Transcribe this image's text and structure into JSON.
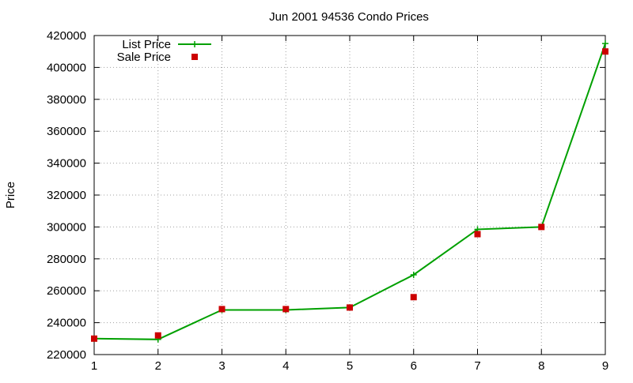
{
  "chart_data": {
    "type": "line",
    "title": "Jun 2001 94536 Condo Prices",
    "xlabel": "",
    "ylabel": "Price",
    "x": [
      1,
      2,
      3,
      4,
      5,
      6,
      7,
      8,
      9
    ],
    "xlim": [
      1,
      9
    ],
    "ylim": [
      220000,
      420000
    ],
    "xticks": [
      "1",
      "2",
      "3",
      "4",
      "5",
      "6",
      "7",
      "8",
      "9"
    ],
    "yticks": [
      "220000",
      "240000",
      "260000",
      "280000",
      "300000",
      "320000",
      "340000",
      "360000",
      "380000",
      "400000",
      "420000"
    ],
    "grid": true,
    "legend_position": "top-left",
    "series": [
      {
        "name": "List Price",
        "style": "line-with-plus-markers",
        "color": "#00a000",
        "values": [
          230000,
          229500,
          248000,
          248000,
          249500,
          270000,
          298500,
          300000,
          415000
        ]
      },
      {
        "name": "Sale Price",
        "style": "square-markers",
        "color": "#cc0000",
        "values": [
          230000,
          232000,
          248500,
          248500,
          249500,
          256000,
          295500,
          300000,
          410000
        ]
      }
    ]
  }
}
